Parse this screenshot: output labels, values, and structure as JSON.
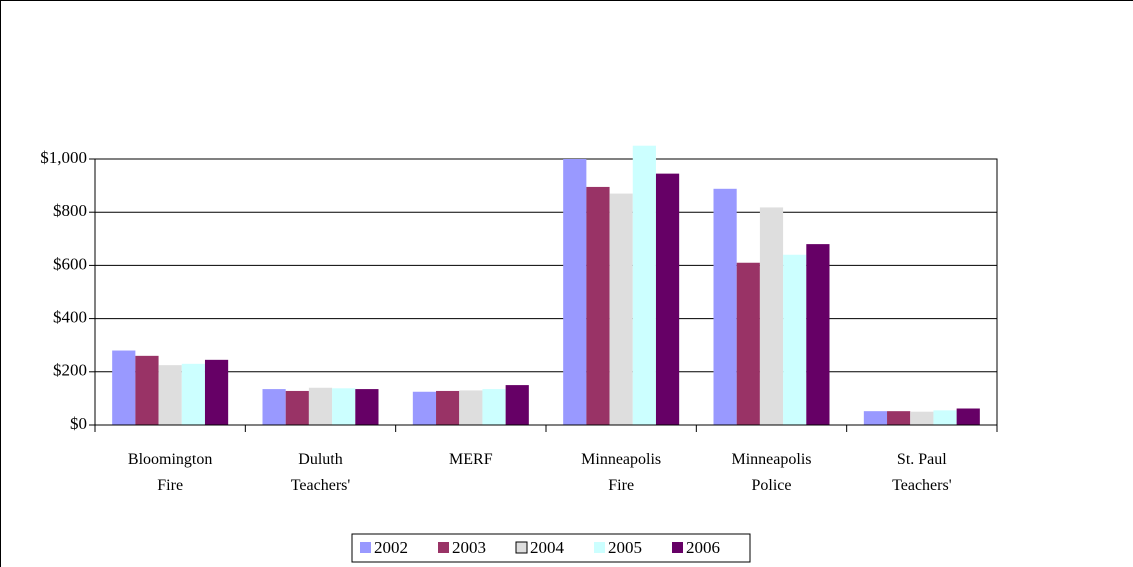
{
  "chart_data": {
    "type": "bar",
    "categories": [
      "Bloomington Fire",
      "Duluth Teachers'",
      "MERF",
      "Minneapolis Fire",
      "Minneapolis Police",
      "St. Paul Teachers'"
    ],
    "series": [
      {
        "name": "2002",
        "color": "#9999ff",
        "values": [
          280,
          135,
          125,
          1000,
          888,
          52
        ]
      },
      {
        "name": "2003",
        "color": "#993366",
        "values": [
          260,
          128,
          128,
          895,
          610,
          52
        ]
      },
      {
        "name": "2004",
        "color": "#dedede",
        "values": [
          225,
          140,
          130,
          870,
          818,
          50
        ]
      },
      {
        "name": "2005",
        "color": "#ccffff",
        "values": [
          230,
          138,
          135,
          1050,
          640,
          55
        ]
      },
      {
        "name": "2006",
        "color": "#660066",
        "values": [
          245,
          135,
          150,
          945,
          680,
          62
        ]
      }
    ],
    "ylim": [
      0,
      1000
    ],
    "yticks": [
      {
        "value": 0,
        "label": "$0"
      },
      {
        "value": 200,
        "label": "$200"
      },
      {
        "value": 400,
        "label": "$400"
      },
      {
        "value": 600,
        "label": "$600"
      },
      {
        "value": 800,
        "label": "$800"
      },
      {
        "value": 1000,
        "label": "$1,000"
      }
    ],
    "grid": true,
    "legend": "bottom"
  }
}
